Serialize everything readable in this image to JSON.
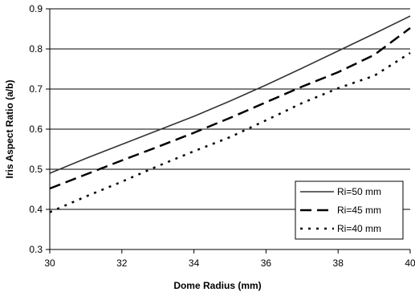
{
  "chart_data": {
    "type": "line",
    "xlabel": "Dome Radius (mm)",
    "ylabel": "Iris Aspect Ratio (a/b)",
    "xlim": [
      30,
      40
    ],
    "ylim": [
      0.3,
      0.9
    ],
    "x_ticks": [
      30,
      32,
      34,
      36,
      38,
      40
    ],
    "y_ticks": [
      0.3,
      0.4,
      0.5,
      0.6,
      0.7,
      0.8,
      0.9
    ],
    "x_tick_labels": [
      "30",
      "32",
      "34",
      "36",
      "38",
      "40"
    ],
    "y_tick_labels": [
      "0.3",
      "0.4",
      "0.5",
      "0.6",
      "0.7",
      "0.8",
      "0.9"
    ],
    "grid": "horizontal",
    "legend_position": "bottom-right",
    "series": [
      {
        "name": "Ri=50 mm",
        "style": "solid",
        "color": "#333333",
        "x": [
          30,
          31,
          32,
          33,
          34,
          35,
          36,
          37,
          38,
          39,
          40
        ],
        "y": [
          0.49,
          0.527,
          0.562,
          0.597,
          0.632,
          0.67,
          0.71,
          0.752,
          0.795,
          0.838,
          0.882
        ]
      },
      {
        "name": "Ri=45 mm",
        "style": "dashed",
        "color": "#000000",
        "x": [
          30,
          31,
          32,
          33,
          34,
          35,
          36,
          37,
          38,
          39,
          40
        ],
        "y": [
          0.452,
          0.487,
          0.522,
          0.556,
          0.591,
          0.628,
          0.667,
          0.706,
          0.742,
          0.785,
          0.852
        ]
      },
      {
        "name": "Ri=40 mm",
        "style": "dotted",
        "color": "#000000",
        "x": [
          30,
          31,
          32,
          33,
          34,
          35,
          36,
          37,
          38,
          39,
          40
        ],
        "y": [
          0.393,
          0.432,
          0.469,
          0.508,
          0.545,
          0.58,
          0.622,
          0.665,
          0.702,
          0.733,
          0.79
        ]
      }
    ]
  }
}
